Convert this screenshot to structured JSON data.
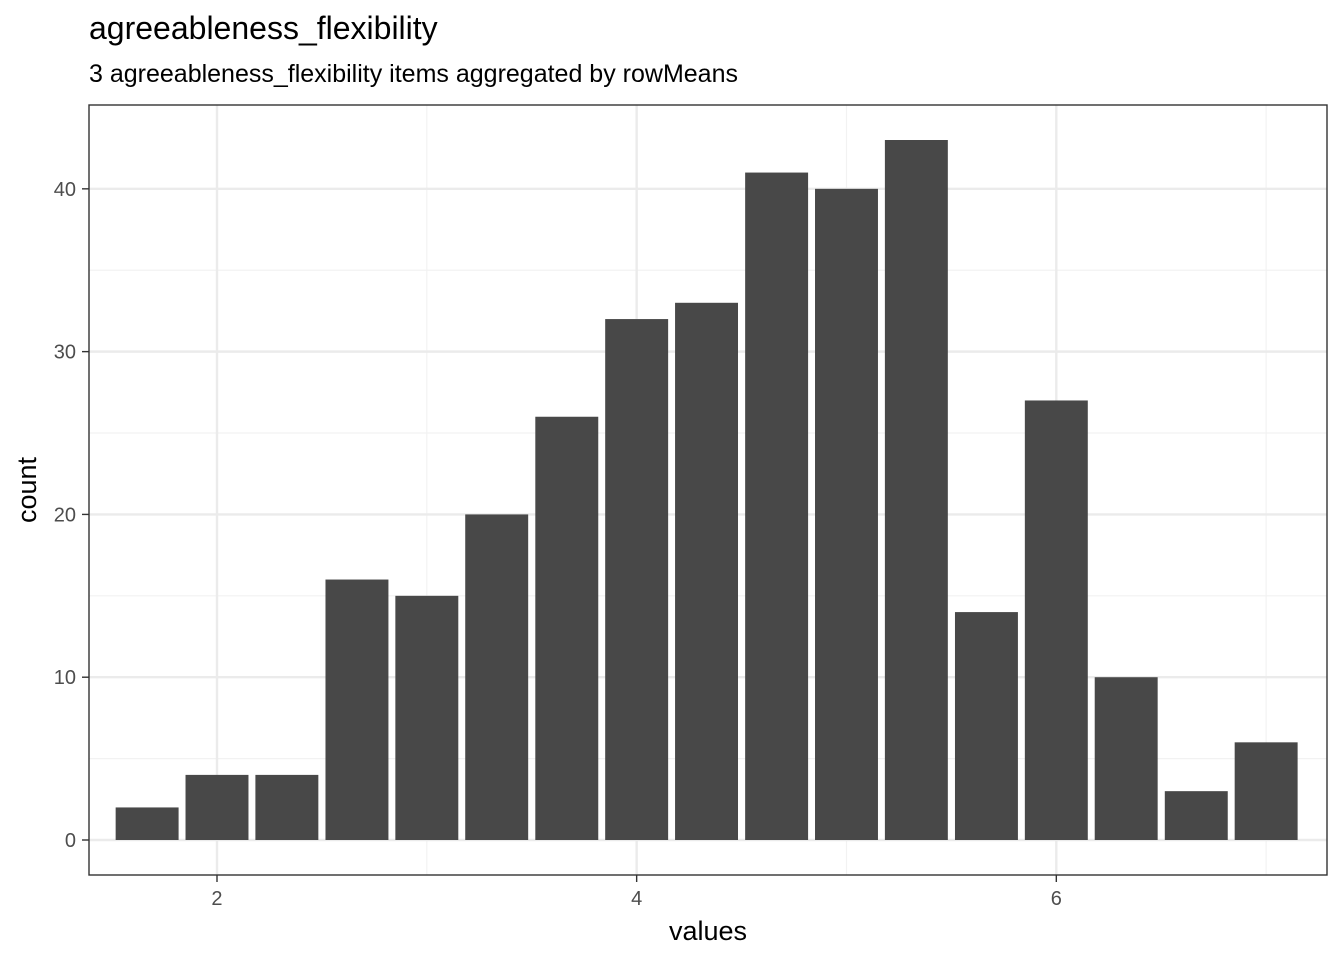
{
  "chart_data": {
    "type": "bar",
    "title": "agreeableness_flexibility",
    "subtitle": "3 agreeableness_flexibility items aggregated by rowMeans",
    "xlabel": "values",
    "ylabel": "count",
    "x": [
      1.667,
      2.0,
      2.333,
      2.667,
      3.0,
      3.333,
      3.667,
      4.0,
      4.333,
      4.667,
      5.0,
      5.333,
      5.667,
      6.0,
      6.333,
      6.667,
      7.0
    ],
    "values": [
      2,
      4,
      4,
      16,
      15,
      20,
      26,
      32,
      33,
      41,
      40,
      43,
      14,
      27,
      10,
      3,
      6
    ],
    "bar_width": 0.3,
    "xlim": [
      1.39,
      7.29
    ],
    "ylim": [
      -2.15,
      45.15
    ],
    "x_major_ticks": [
      2,
      4,
      6
    ],
    "x_tick_labels": [
      "2",
      "4",
      "6"
    ],
    "x_minor_ticks": [
      3,
      5,
      7
    ],
    "y_major_ticks": [
      0,
      10,
      20,
      30,
      40
    ],
    "y_tick_labels": [
      "0",
      "10",
      "20",
      "30",
      "40"
    ],
    "y_minor_ticks": [
      5,
      15,
      25,
      35
    ],
    "grid": true,
    "colors": {
      "bar": "#484848",
      "grid_major": "#ebebeb",
      "grid_minor": "#f2f2f2",
      "panel_border": "#333333",
      "tick": "#333333",
      "tick_text": "#4d4d4d",
      "background": "#ffffff"
    }
  }
}
